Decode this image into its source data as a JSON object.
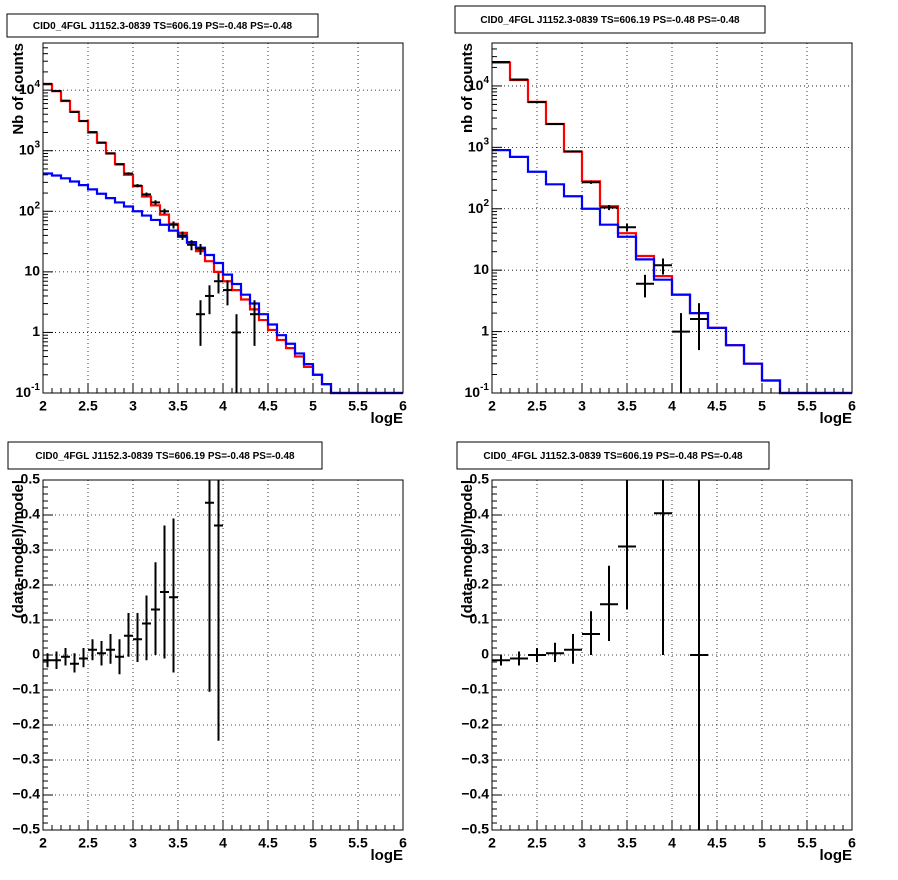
{
  "chart_data": [
    {
      "type": "line",
      "title": "CID0_4FGL J1152.3-0839 TS=606.19 PS=-0.48 PS=-0.48",
      "xlabel": "logE",
      "ylabel": "Nb of counts",
      "xlim": [
        2,
        6
      ],
      "ylim": [
        0.1,
        60000
      ],
      "log_y": true,
      "grid": true,
      "xticks": [
        "2",
        "2.5",
        "3",
        "3.5",
        "4",
        "4.5",
        "5",
        "5.5",
        "6"
      ],
      "yticks": [
        {
          "value": 0.1,
          "label": "10^-1"
        },
        {
          "value": 1,
          "label": "1"
        },
        {
          "value": 10,
          "label": "10"
        },
        {
          "value": 100,
          "label": "10^2"
        },
        {
          "value": 1000,
          "label": "10^3"
        },
        {
          "value": 10000,
          "label": "10^4"
        }
      ],
      "bin_edges": [
        2.0,
        2.1,
        2.2,
        2.3,
        2.4,
        2.5,
        2.6,
        2.7,
        2.8,
        2.9,
        3.0,
        3.1,
        3.2,
        3.3,
        3.4,
        3.5,
        3.6,
        3.7,
        3.8,
        3.9,
        4.0,
        4.1,
        4.2,
        4.3,
        4.4,
        4.5,
        4.6,
        4.7,
        4.8,
        4.9,
        5.0,
        5.1,
        5.2,
        5.3,
        5.4,
        5.5,
        5.6,
        5.7,
        5.8,
        5.9,
        6.0
      ],
      "series": [
        {
          "color": "#ff0000",
          "type": "step",
          "values": [
            12500,
            9600,
            6600,
            4400,
            3100,
            2000,
            1350,
            900,
            600,
            400,
            260,
            175,
            125,
            88,
            62,
            44,
            30,
            22,
            15,
            10,
            7,
            5,
            3.5,
            2.4,
            1.6,
            1.1,
            0.75,
            0.55,
            0.4,
            0.27,
            0.2,
            0.14,
            0.1,
            0.1,
            0.1,
            0.1,
            0.1,
            0.1,
            0.1,
            0.1
          ]
        },
        {
          "color": "#0000ff",
          "type": "step",
          "values": [
            420,
            390,
            350,
            310,
            270,
            230,
            195,
            165,
            140,
            120,
            100,
            85,
            72,
            60,
            48,
            38,
            31,
            25,
            19,
            14,
            9,
            6.3,
            4.2,
            3.0,
            2.0,
            1.35,
            0.9,
            0.65,
            0.45,
            0.3,
            0.2,
            0.14,
            0.1,
            0.1,
            0.1,
            0.1,
            0.1,
            0.1,
            0.1,
            0.1
          ]
        }
      ],
      "points": [
        {
          "x": 2.05,
          "y": 12700,
          "xerr": 0.05,
          "ylo": 12590,
          "yhi": 12810
        },
        {
          "x": 2.15,
          "y": 9700,
          "xerr": 0.05,
          "ylo": 9600,
          "yhi": 9800
        },
        {
          "x": 2.25,
          "y": 6700,
          "xerr": 0.05,
          "ylo": 6620,
          "yhi": 6780
        },
        {
          "x": 2.35,
          "y": 4350,
          "xerr": 0.05,
          "ylo": 4285,
          "yhi": 4415
        },
        {
          "x": 2.45,
          "y": 3080,
          "xerr": 0.05,
          "ylo": 3025,
          "yhi": 3135
        },
        {
          "x": 2.55,
          "y": 2030,
          "xerr": 0.05,
          "ylo": 1985,
          "yhi": 2075
        },
        {
          "x": 2.65,
          "y": 1360,
          "xerr": 0.05,
          "ylo": 1323,
          "yhi": 1397
        },
        {
          "x": 2.75,
          "y": 905,
          "xerr": 0.05,
          "ylo": 875,
          "yhi": 935
        },
        {
          "x": 2.85,
          "y": 595,
          "xerr": 0.05,
          "ylo": 571,
          "yhi": 619
        },
        {
          "x": 2.95,
          "y": 420,
          "xerr": 0.05,
          "ylo": 400,
          "yhi": 440
        },
        {
          "x": 3.05,
          "y": 265,
          "xerr": 0.05,
          "ylo": 249,
          "yhi": 281
        },
        {
          "x": 3.15,
          "y": 190,
          "xerr": 0.05,
          "ylo": 176,
          "yhi": 204
        },
        {
          "x": 3.25,
          "y": 140,
          "xerr": 0.05,
          "ylo": 128,
          "yhi": 152
        },
        {
          "x": 3.35,
          "y": 100,
          "xerr": 0.05,
          "ylo": 90,
          "yhi": 110
        },
        {
          "x": 3.45,
          "y": 60,
          "xerr": 0.05,
          "ylo": 52,
          "yhi": 68
        },
        {
          "x": 3.55,
          "y": 40,
          "xerr": 0.05,
          "ylo": 33.7,
          "yhi": 46.3
        },
        {
          "x": 3.65,
          "y": 28,
          "xerr": 0.05,
          "ylo": 22.7,
          "yhi": 33.3
        },
        {
          "x": 3.75,
          "y": 24,
          "xerr": 0.05,
          "ylo": 19.1,
          "yhi": 28.9
        },
        {
          "x": 3.85,
          "y": 4,
          "xerr": 0.05,
          "ylo": 2.0,
          "yhi": 6.0
        },
        {
          "x": 3.75,
          "y": 2,
          "xerr": 0.05,
          "ylo": 0.6,
          "yhi": 3.4
        },
        {
          "x": 3.95,
          "y": 7,
          "xerr": 0.05,
          "ylo": 4.4,
          "yhi": 9.6
        },
        {
          "x": 4.05,
          "y": 5,
          "xerr": 0.05,
          "ylo": 2.8,
          "yhi": 7.2
        },
        {
          "x": 4.15,
          "y": 1,
          "xerr": 0.05,
          "ylo": 0.1,
          "yhi": 2.0
        },
        {
          "x": 4.35,
          "y": 2,
          "xerr": 0.05,
          "ylo": 0.6,
          "yhi": 3.4
        }
      ]
    },
    {
      "type": "line",
      "title": "CID0_4FGL J1152.3-0839 TS=606.19 PS=-0.48 PS=-0.48",
      "xlabel": "logE",
      "ylabel": "nb of counts",
      "xlim": [
        2,
        6
      ],
      "ylim": [
        0.1,
        50000
      ],
      "log_y": true,
      "grid": true,
      "xticks": [
        "2",
        "2.5",
        "3",
        "3.5",
        "4",
        "4.5",
        "5",
        "5.5",
        "6"
      ],
      "yticks": [
        {
          "value": 0.1,
          "label": "10^-1"
        },
        {
          "value": 1,
          "label": "1"
        },
        {
          "value": 10,
          "label": "10"
        },
        {
          "value": 100,
          "label": "10^2"
        },
        {
          "value": 1000,
          "label": "10^3"
        },
        {
          "value": 10000,
          "label": "10^4"
        }
      ],
      "bin_edges": [
        2.0,
        2.2,
        2.4,
        2.6,
        2.8,
        3.0,
        3.2,
        3.4,
        3.6,
        3.8,
        4.0,
        4.2,
        4.4,
        4.6,
        4.8,
        5.0,
        5.2,
        5.4,
        5.6,
        5.8,
        6.0
      ],
      "series": [
        {
          "color": "#ff0000",
          "type": "step",
          "values": [
            24000,
            12500,
            5500,
            2400,
            850,
            280,
            110,
            40,
            17,
            8,
            4,
            2.0,
            1.15,
            0.6,
            0.3,
            0.16,
            0.1,
            0.1,
            0.1,
            0.1
          ]
        },
        {
          "color": "#0000ff",
          "type": "step",
          "values": [
            900,
            700,
            400,
            250,
            160,
            100,
            55,
            35,
            15,
            7,
            4,
            2.0,
            1.15,
            0.6,
            0.3,
            0.16,
            0.1,
            0.1,
            0.1,
            0.1
          ]
        }
      ],
      "points": [
        {
          "x": 2.1,
          "y": 24500,
          "xerr": 0.1,
          "ylo": 24340,
          "yhi": 24660
        },
        {
          "x": 2.3,
          "y": 12700,
          "xerr": 0.1,
          "ylo": 12590,
          "yhi": 12810
        },
        {
          "x": 2.5,
          "y": 5450,
          "xerr": 0.1,
          "ylo": 5380,
          "yhi": 5520
        },
        {
          "x": 2.7,
          "y": 2400,
          "xerr": 0.1,
          "ylo": 2350,
          "yhi": 2450
        },
        {
          "x": 2.9,
          "y": 860,
          "xerr": 0.1,
          "ylo": 830,
          "yhi": 890
        },
        {
          "x": 3.1,
          "y": 270,
          "xerr": 0.1,
          "ylo": 254,
          "yhi": 286
        },
        {
          "x": 3.3,
          "y": 105,
          "xerr": 0.1,
          "ylo": 95,
          "yhi": 115
        },
        {
          "x": 3.5,
          "y": 50,
          "xerr": 0.1,
          "ylo": 43,
          "yhi": 57
        },
        {
          "x": 3.7,
          "y": 6,
          "xerr": 0.1,
          "ylo": 3.6,
          "yhi": 8.4
        },
        {
          "x": 3.9,
          "y": 12,
          "xerr": 0.1,
          "ylo": 8.5,
          "yhi": 15.5
        },
        {
          "x": 4.1,
          "y": 1,
          "xerr": 0.1,
          "ylo": 0.1,
          "yhi": 2.0
        },
        {
          "x": 4.3,
          "y": 1.6,
          "xerr": 0.1,
          "ylo": 0.5,
          "yhi": 2.9
        }
      ]
    },
    {
      "type": "scatter",
      "title": "CID0_4FGL J1152.3-0839 TS=606.19 PS=-0.48 PS=-0.48",
      "xlabel": "logE",
      "ylabel": "(data-model)/model",
      "xlim": [
        2,
        6
      ],
      "ylim": [
        -0.5,
        0.5
      ],
      "log_y": false,
      "grid": true,
      "xticks": [
        "2",
        "2.5",
        "3",
        "3.5",
        "4",
        "4.5",
        "5",
        "5.5",
        "6"
      ],
      "yticks": [
        {
          "value": -0.5,
          "label": "−0.5"
        },
        {
          "value": -0.4,
          "label": "−0.4"
        },
        {
          "value": -0.3,
          "label": "−0.3"
        },
        {
          "value": -0.2,
          "label": "−0.2"
        },
        {
          "value": -0.1,
          "label": "−0.1"
        },
        {
          "value": 0,
          "label": "0"
        },
        {
          "value": 0.1,
          "label": "0.1"
        },
        {
          "value": 0.2,
          "label": "0.2"
        },
        {
          "value": 0.3,
          "label": "0.3"
        },
        {
          "value": 0.4,
          "label": "0.4"
        },
        {
          "value": 0.5,
          "label": "0.5"
        }
      ],
      "points": [
        {
          "x": 2.05,
          "y": -0.015,
          "xerr": 0.05,
          "ylo": -0.035,
          "yhi": 0.005
        },
        {
          "x": 2.15,
          "y": -0.015,
          "xerr": 0.05,
          "ylo": -0.04,
          "yhi": 0.01
        },
        {
          "x": 2.25,
          "y": -0.005,
          "xerr": 0.05,
          "ylo": -0.03,
          "yhi": 0.02
        },
        {
          "x": 2.35,
          "y": -0.025,
          "xerr": 0.05,
          "ylo": -0.05,
          "yhi": 0.005
        },
        {
          "x": 2.45,
          "y": -0.01,
          "xerr": 0.05,
          "ylo": -0.035,
          "yhi": 0.02
        },
        {
          "x": 2.55,
          "y": 0.015,
          "xerr": 0.05,
          "ylo": -0.015,
          "yhi": 0.045
        },
        {
          "x": 2.65,
          "y": 0.005,
          "xerr": 0.05,
          "ylo": -0.03,
          "yhi": 0.04
        },
        {
          "x": 2.75,
          "y": 0.015,
          "xerr": 0.05,
          "ylo": -0.025,
          "yhi": 0.06
        },
        {
          "x": 2.85,
          "y": -0.005,
          "xerr": 0.05,
          "ylo": -0.055,
          "yhi": 0.045
        },
        {
          "x": 2.95,
          "y": 0.055,
          "xerr": 0.05,
          "ylo": -0.005,
          "yhi": 0.12
        },
        {
          "x": 3.05,
          "y": 0.045,
          "xerr": 0.05,
          "ylo": -0.02,
          "yhi": 0.12
        },
        {
          "x": 3.15,
          "y": 0.09,
          "xerr": 0.05,
          "ylo": -0.015,
          "yhi": 0.17
        },
        {
          "x": 3.25,
          "y": 0.13,
          "xerr": 0.05,
          "ylo": 0.0,
          "yhi": 0.265
        },
        {
          "x": 3.35,
          "y": 0.18,
          "xerr": 0.05,
          "ylo": -0.01,
          "yhi": 0.37
        },
        {
          "x": 3.45,
          "y": 0.165,
          "xerr": 0.05,
          "ylo": -0.05,
          "yhi": 0.39
        },
        {
          "x": 3.85,
          "y": 0.435,
          "xerr": 0.05,
          "ylo": -0.105,
          "yhi": 0.5
        },
        {
          "x": 3.95,
          "y": 0.37,
          "xerr": 0.05,
          "ylo": -0.245,
          "yhi": 0.5
        }
      ]
    },
    {
      "type": "scatter",
      "title": "CID0_4FGL J1152.3-0839 TS=606.19 PS=-0.48 PS=-0.48",
      "xlabel": "logE",
      "ylabel": "(data-model)/model",
      "xlim": [
        2,
        6
      ],
      "ylim": [
        -0.5,
        0.5
      ],
      "log_y": false,
      "grid": true,
      "xticks": [
        "2",
        "2.5",
        "3",
        "3.5",
        "4",
        "4.5",
        "5",
        "5.5",
        "6"
      ],
      "yticks": [
        {
          "value": -0.5,
          "label": "−0.5"
        },
        {
          "value": -0.4,
          "label": "−0.4"
        },
        {
          "value": -0.3,
          "label": "−0.3"
        },
        {
          "value": -0.2,
          "label": "−0.2"
        },
        {
          "value": -0.1,
          "label": "−0.1"
        },
        {
          "value": 0,
          "label": "0"
        },
        {
          "value": 0.1,
          "label": "0.1"
        },
        {
          "value": 0.2,
          "label": "0.2"
        },
        {
          "value": 0.3,
          "label": "0.3"
        },
        {
          "value": 0.4,
          "label": "0.4"
        },
        {
          "value": 0.5,
          "label": "0.5"
        }
      ],
      "points": [
        {
          "x": 2.1,
          "y": -0.015,
          "xerr": 0.1,
          "ylo": -0.03,
          "yhi": 0.0
        },
        {
          "x": 2.3,
          "y": -0.01,
          "xerr": 0.1,
          "ylo": -0.03,
          "yhi": 0.01
        },
        {
          "x": 2.5,
          "y": 0.0,
          "xerr": 0.1,
          "ylo": -0.02,
          "yhi": 0.02
        },
        {
          "x": 2.7,
          "y": 0.005,
          "xerr": 0.1,
          "ylo": -0.02,
          "yhi": 0.035
        },
        {
          "x": 2.9,
          "y": 0.015,
          "xerr": 0.1,
          "ylo": -0.025,
          "yhi": 0.06
        },
        {
          "x": 3.1,
          "y": 0.06,
          "xerr": 0.1,
          "ylo": 0.0,
          "yhi": 0.125
        },
        {
          "x": 3.3,
          "y": 0.145,
          "xerr": 0.1,
          "ylo": 0.04,
          "yhi": 0.255
        },
        {
          "x": 3.5,
          "y": 0.31,
          "xerr": 0.1,
          "ylo": 0.13,
          "yhi": 0.5
        },
        {
          "x": 3.9,
          "y": 0.405,
          "xerr": 0.1,
          "ylo": 0.0,
          "yhi": 0.5
        },
        {
          "x": 4.3,
          "y": 0.0,
          "xerr": 0.1,
          "ylo": -0.5,
          "yhi": 0.5
        }
      ]
    }
  ]
}
